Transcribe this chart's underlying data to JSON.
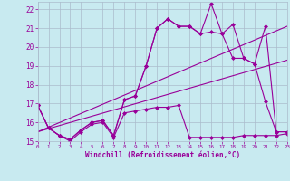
{
  "xlabel": "Windchill (Refroidissement éolien,°C)",
  "xlim": [
    0,
    23
  ],
  "ylim": [
    15,
    22.4
  ],
  "yticks": [
    15,
    16,
    17,
    18,
    19,
    20,
    21,
    22
  ],
  "xticks": [
    0,
    1,
    2,
    3,
    4,
    5,
    6,
    7,
    8,
    9,
    10,
    11,
    12,
    13,
    14,
    15,
    16,
    17,
    18,
    19,
    20,
    21,
    22,
    23
  ],
  "xticklabels": [
    "0",
    "1",
    "2",
    "3",
    "4",
    "5",
    "6",
    "7",
    "8",
    "9",
    "10",
    "11",
    "12",
    "13",
    "14",
    "15",
    "16",
    "17",
    "18",
    "19",
    "20",
    "21",
    "22",
    "23"
  ],
  "bg_color": "#c8eaf0",
  "line_color": "#990099",
  "grid_color": "#aabbcc",
  "lines": [
    {
      "x": [
        0,
        1,
        2,
        3,
        4,
        5,
        6,
        7,
        8,
        9,
        10,
        11,
        12,
        13,
        14,
        15,
        16,
        17,
        18,
        19,
        20,
        21,
        22,
        23
      ],
      "y": [
        16.9,
        15.7,
        15.3,
        15.0,
        15.5,
        15.9,
        16.0,
        15.2,
        16.5,
        16.6,
        16.7,
        16.8,
        16.8,
        16.9,
        15.2,
        15.2,
        15.2,
        15.2,
        15.2,
        15.3,
        15.3,
        15.3,
        15.3,
        15.4
      ],
      "marker": "D",
      "markersize": 2.0
    },
    {
      "x": [
        0,
        1,
        2,
        3,
        4,
        5,
        6,
        7,
        8,
        9,
        10,
        11,
        12,
        13,
        14,
        15,
        16,
        17,
        18,
        19,
        20,
        21,
        22,
        23
      ],
      "y": [
        16.9,
        15.7,
        15.3,
        15.1,
        15.6,
        16.0,
        16.1,
        15.3,
        17.2,
        17.4,
        19.0,
        21.0,
        21.5,
        21.1,
        21.1,
        20.7,
        20.8,
        20.7,
        19.4,
        19.4,
        19.1,
        17.1,
        15.5,
        15.5
      ],
      "marker": "D",
      "markersize": 2.0
    },
    {
      "x": [
        0,
        1,
        2,
        3,
        4,
        5,
        6,
        7,
        8,
        9,
        10,
        11,
        12,
        13,
        14,
        15,
        16,
        17,
        18,
        19,
        20,
        21,
        22,
        23
      ],
      "y": [
        16.9,
        15.7,
        15.3,
        15.1,
        15.6,
        16.0,
        16.1,
        15.3,
        17.2,
        17.4,
        19.0,
        21.0,
        21.5,
        21.1,
        21.1,
        20.7,
        22.3,
        20.7,
        21.2,
        19.4,
        19.1,
        21.1,
        15.5,
        15.5
      ],
      "marker": "D",
      "markersize": 2.0
    },
    {
      "x": [
        0,
        23
      ],
      "y": [
        15.5,
        19.3
      ],
      "marker": null,
      "markersize": 0
    },
    {
      "x": [
        0,
        23
      ],
      "y": [
        15.5,
        21.1
      ],
      "marker": null,
      "markersize": 0
    }
  ]
}
